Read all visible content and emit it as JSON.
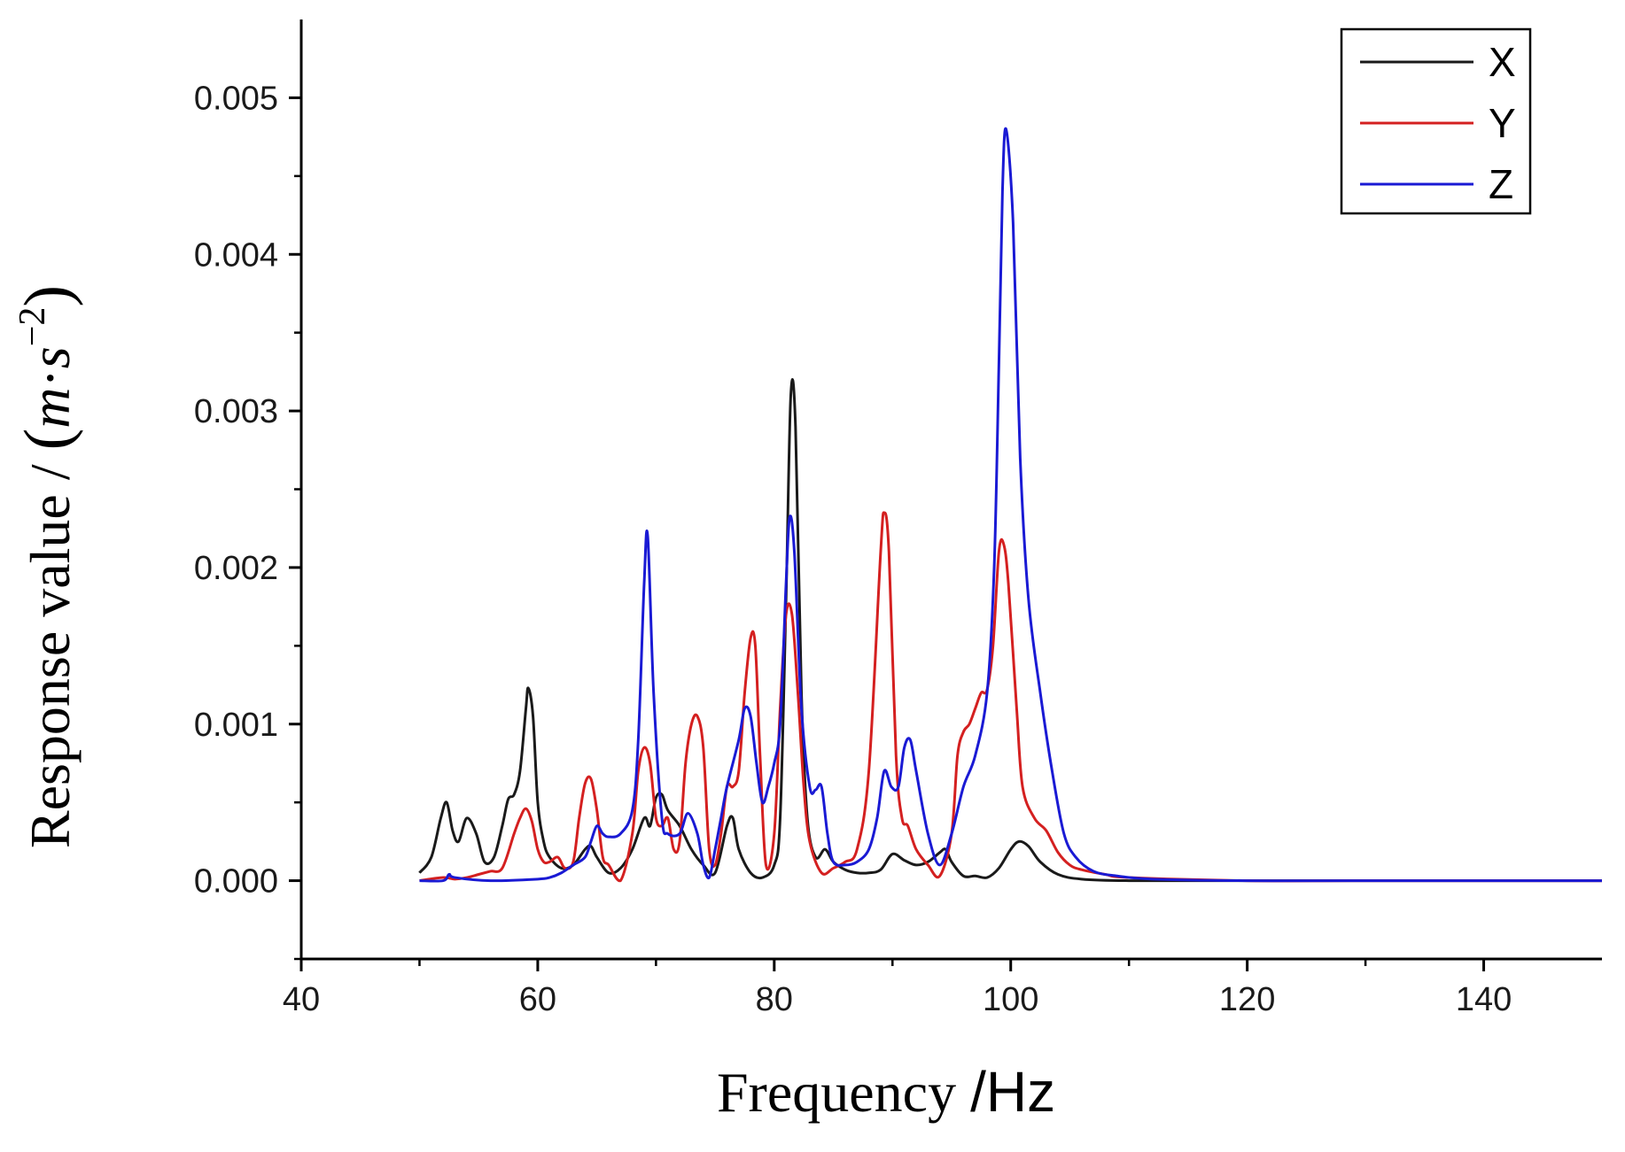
{
  "chart_data": {
    "type": "line",
    "xlabel": {
      "main": "Frequency ",
      "unit": "/Hz"
    },
    "ylabel": {
      "main": "Response value / ",
      "unit_open": "(",
      "unit_m": "m",
      "unit_dot": "·",
      "unit_s": "s",
      "unit_exp": "−2",
      "unit_close": ")"
    },
    "xlim": [
      40,
      150
    ],
    "ylim": [
      -0.0005,
      0.0055
    ],
    "x_ticks": [
      40,
      60,
      80,
      100,
      120,
      140
    ],
    "x_tick_labels": [
      "40",
      "60",
      "80",
      "100",
      "120",
      "140"
    ],
    "y_ticks": [
      0.0,
      0.001,
      0.002,
      0.003,
      0.004,
      0.005
    ],
    "y_tick_labels": [
      "0.000",
      "0.001",
      "0.002",
      "0.003",
      "0.004",
      "0.005"
    ],
    "grid": false,
    "legend_position": "top-right",
    "series": [
      {
        "name": "X",
        "color": "#1a1a1a",
        "x": [
          50,
          51,
          51.8,
          52.3,
          52.8,
          53.3,
          54,
          54.8,
          55.5,
          56.3,
          57,
          57.5,
          58,
          58.5,
          59,
          59.2,
          59.6,
          60,
          60.5,
          61,
          62,
          63,
          64,
          64.5,
          65,
          66,
          67,
          68,
          69,
          69.5,
          70,
          70.5,
          71,
          72,
          73,
          74,
          75,
          76,
          76.5,
          77,
          78,
          79,
          80,
          80.5,
          81,
          81.4,
          81.8,
          82.3,
          82.8,
          83.5,
          84.3,
          85,
          86,
          87,
          88,
          89,
          90,
          91,
          92,
          93,
          94,
          94.5,
          95,
          96,
          97,
          98,
          99,
          100,
          100.7,
          101.5,
          102.5,
          104,
          106,
          110,
          120,
          130,
          150
        ],
        "y": [
          5e-05,
          0.00015,
          0.0004,
          0.0005,
          0.00032,
          0.00025,
          0.0004,
          0.0003,
          0.00012,
          0.00015,
          0.00035,
          0.00052,
          0.00055,
          0.0007,
          0.0011,
          0.00123,
          0.00105,
          0.0005,
          0.00025,
          0.00015,
          8e-05,
          0.0001,
          0.0002,
          0.00022,
          0.00015,
          5e-05,
          8e-05,
          0.0002,
          0.0004,
          0.00035,
          0.00053,
          0.00055,
          0.00045,
          0.00035,
          0.0002,
          0.0001,
          5e-05,
          0.00035,
          0.0004,
          0.0002,
          5e-05,
          2e-05,
          0.0001,
          0.0004,
          0.0018,
          0.0031,
          0.0029,
          0.0012,
          0.0004,
          0.00015,
          0.0002,
          0.00012,
          7e-05,
          5e-05,
          5e-05,
          7e-05,
          0.00017,
          0.00013,
          0.0001,
          0.00012,
          0.00018,
          0.0002,
          0.00012,
          3e-05,
          3e-05,
          2e-05,
          8e-05,
          0.0002,
          0.00025,
          0.00022,
          0.00012,
          4e-05,
          1e-05,
          0.0,
          0.0,
          0.0,
          0.0
        ]
      },
      {
        "name": "Y",
        "color": "#d42020",
        "x": [
          50,
          52,
          53,
          54,
          55,
          56,
          57,
          58,
          58.5,
          59,
          59.5,
          60,
          60.5,
          61,
          61.7,
          62.3,
          63,
          63.5,
          64,
          64.5,
          65,
          65.5,
          66,
          67,
          68,
          68.5,
          69,
          69.5,
          70,
          70.5,
          71,
          71.5,
          72,
          72.5,
          73,
          73.5,
          74,
          74.5,
          75,
          75.5,
          76,
          76.5,
          77,
          77.5,
          78,
          78.4,
          78.8,
          79.3,
          80,
          80.5,
          81,
          81.5,
          82,
          82.5,
          83,
          84,
          85,
          86,
          87,
          88,
          89,
          89.3,
          89.7,
          90.3,
          90.8,
          91.3,
          92,
          93,
          94,
          95,
          95.5,
          96,
          96.5,
          97,
          97.5,
          98,
          98.5,
          99,
          99.4,
          99.8,
          100.5,
          101,
          102,
          103,
          104,
          105,
          106,
          108,
          110,
          120,
          130,
          150
        ],
        "y": [
          0.0,
          2e-05,
          1e-05,
          2e-05,
          4e-05,
          6e-05,
          8e-05,
          0.0003,
          0.0004,
          0.00046,
          0.00038,
          0.0002,
          0.00012,
          0.00012,
          0.00015,
          8e-05,
          0.00012,
          0.0004,
          0.00062,
          0.00065,
          0.00045,
          0.00015,
          0.0001,
          0.0,
          0.0003,
          0.0007,
          0.00085,
          0.00075,
          0.0004,
          0.00035,
          0.0004,
          0.0002,
          0.00025,
          0.00075,
          0.001,
          0.00105,
          0.00085,
          0.0002,
          0.0001,
          0.0003,
          0.0006,
          0.0006,
          0.0007,
          0.0012,
          0.00155,
          0.0015,
          0.0008,
          0.0001,
          0.0003,
          0.0011,
          0.0017,
          0.0017,
          0.0012,
          0.0006,
          0.00025,
          5e-05,
          8e-05,
          0.00012,
          0.0002,
          0.0007,
          0.0021,
          0.00235,
          0.0021,
          0.0008,
          0.0004,
          0.00035,
          0.0002,
          0.0001,
          3e-05,
          0.0003,
          0.0008,
          0.00095,
          0.001,
          0.0011,
          0.0012,
          0.00122,
          0.0015,
          0.0021,
          0.00215,
          0.0019,
          0.0011,
          0.0006,
          0.0004,
          0.00032,
          0.00018,
          0.0001,
          7e-05,
          4e-05,
          2e-05,
          0.0,
          0.0,
          0.0
        ]
      },
      {
        "name": "Z",
        "color": "#1a1ad4",
        "x": [
          50,
          52,
          52.5,
          53,
          56,
          60,
          61,
          62,
          63,
          64,
          64.5,
          65,
          65.5,
          66,
          67,
          68,
          68.5,
          69,
          69.3,
          69.8,
          70.5,
          71,
          72,
          72.7,
          73.5,
          74,
          74.5,
          75,
          75.5,
          76,
          77,
          77.5,
          78,
          78.5,
          79,
          79.5,
          80,
          80.5,
          81,
          81.3,
          81.7,
          82.3,
          83,
          83.5,
          84,
          84.5,
          85,
          86,
          87,
          88,
          88.7,
          89.3,
          89.9,
          90.5,
          91,
          91.5,
          92,
          93,
          94,
          95,
          96,
          97,
          98,
          98.6,
          99,
          99.3,
          99.6,
          100.2,
          100.8,
          101.5,
          102.5,
          103.5,
          104.5,
          105.5,
          107,
          109,
          112,
          120,
          130,
          150
        ],
        "y": [
          0.0,
          0.0,
          4e-05,
          2e-05,
          0.0,
          1e-05,
          2e-05,
          5e-05,
          0.0001,
          0.00015,
          0.00025,
          0.00035,
          0.0003,
          0.00028,
          0.0003,
          0.00045,
          0.0009,
          0.0019,
          0.0022,
          0.0012,
          0.0004,
          0.0003,
          0.0003,
          0.00043,
          0.0003,
          0.0001,
          2e-05,
          0.0002,
          0.0004,
          0.0006,
          0.0009,
          0.0011,
          0.00105,
          0.00075,
          0.0005,
          0.0006,
          0.00075,
          0.001,
          0.0019,
          0.00232,
          0.0021,
          0.0011,
          0.0006,
          0.00058,
          0.0006,
          0.0003,
          0.00012,
          0.0001,
          0.00012,
          0.0002,
          0.0004,
          0.0007,
          0.0006,
          0.0006,
          0.00085,
          0.0009,
          0.0007,
          0.0003,
          0.0001,
          0.0003,
          0.0006,
          0.0008,
          0.0012,
          0.002,
          0.0033,
          0.0044,
          0.0048,
          0.0042,
          0.0027,
          0.0018,
          0.0012,
          0.0007,
          0.0003,
          0.00015,
          6e-05,
          3e-05,
          1e-05,
          0.0,
          0.0,
          0.0
        ]
      }
    ]
  }
}
